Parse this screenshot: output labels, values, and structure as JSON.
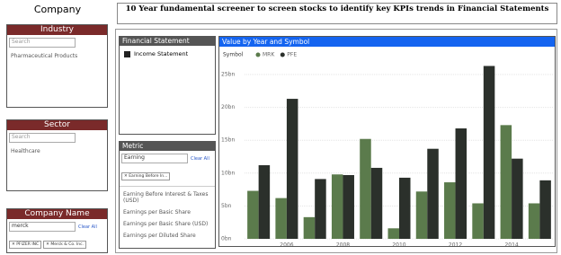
{
  "company_title": "Company",
  "industry": {
    "title": "Industry",
    "placeholder": "Search",
    "items": [
      "Pharmaceutical Products"
    ]
  },
  "sector": {
    "title": "Sector",
    "placeholder": "Search",
    "items": [
      "Healthcare"
    ]
  },
  "company_name": {
    "title": "Company Name",
    "search": "merck",
    "clear": "Clear All",
    "chips": [
      "PFIZER INC",
      "Merck & Co. Inc."
    ]
  },
  "header": {
    "title": "10 Year fundamental screener to screen stocks to identify key  KPIs trends in Financial Statements"
  },
  "financial_statement": {
    "title": "Financial Statement",
    "items": [
      "Income Statement"
    ]
  },
  "metric": {
    "title": "Metric",
    "search": "Earning",
    "clear": "Clear All",
    "chips": [
      "Earning Before In..."
    ],
    "items": [
      "Earning Before Interest & Taxes (USD)",
      "Earnings per Basic Share",
      "Earnings per Basic Share (USD)",
      "Earnings per Diluted Share"
    ]
  },
  "chart_data": {
    "type": "bar",
    "title": "Value by Year and Symbol",
    "legend_title": "Symbol",
    "categories": [
      null,
      "2006",
      null,
      "2008",
      null,
      "2010",
      null,
      "2012",
      null,
      "2014",
      null
    ],
    "series": [
      {
        "name": "MRK",
        "color": "#5b7b4c",
        "values": [
          7.3,
          6.2,
          3.3,
          9.8,
          15.2,
          1.6,
          7.2,
          8.6,
          5.4,
          17.3,
          5.4
        ]
      },
      {
        "name": "PFE",
        "color": "#2b302b",
        "values": [
          11.2,
          21.3,
          9.1,
          9.7,
          10.8,
          9.3,
          13.7,
          16.8,
          26.3,
          12.2,
          8.9
        ]
      }
    ],
    "ylim": [
      0,
      26.5
    ],
    "yticks": [
      {
        "value": 0,
        "label": "0bn"
      },
      {
        "value": 5,
        "label": "5bn"
      },
      {
        "value": 10,
        "label": "10bn"
      },
      {
        "value": 15,
        "label": "15bn"
      },
      {
        "value": 20,
        "label": "20bn"
      },
      {
        "value": 25,
        "label": "25bn"
      }
    ],
    "grid": true
  }
}
